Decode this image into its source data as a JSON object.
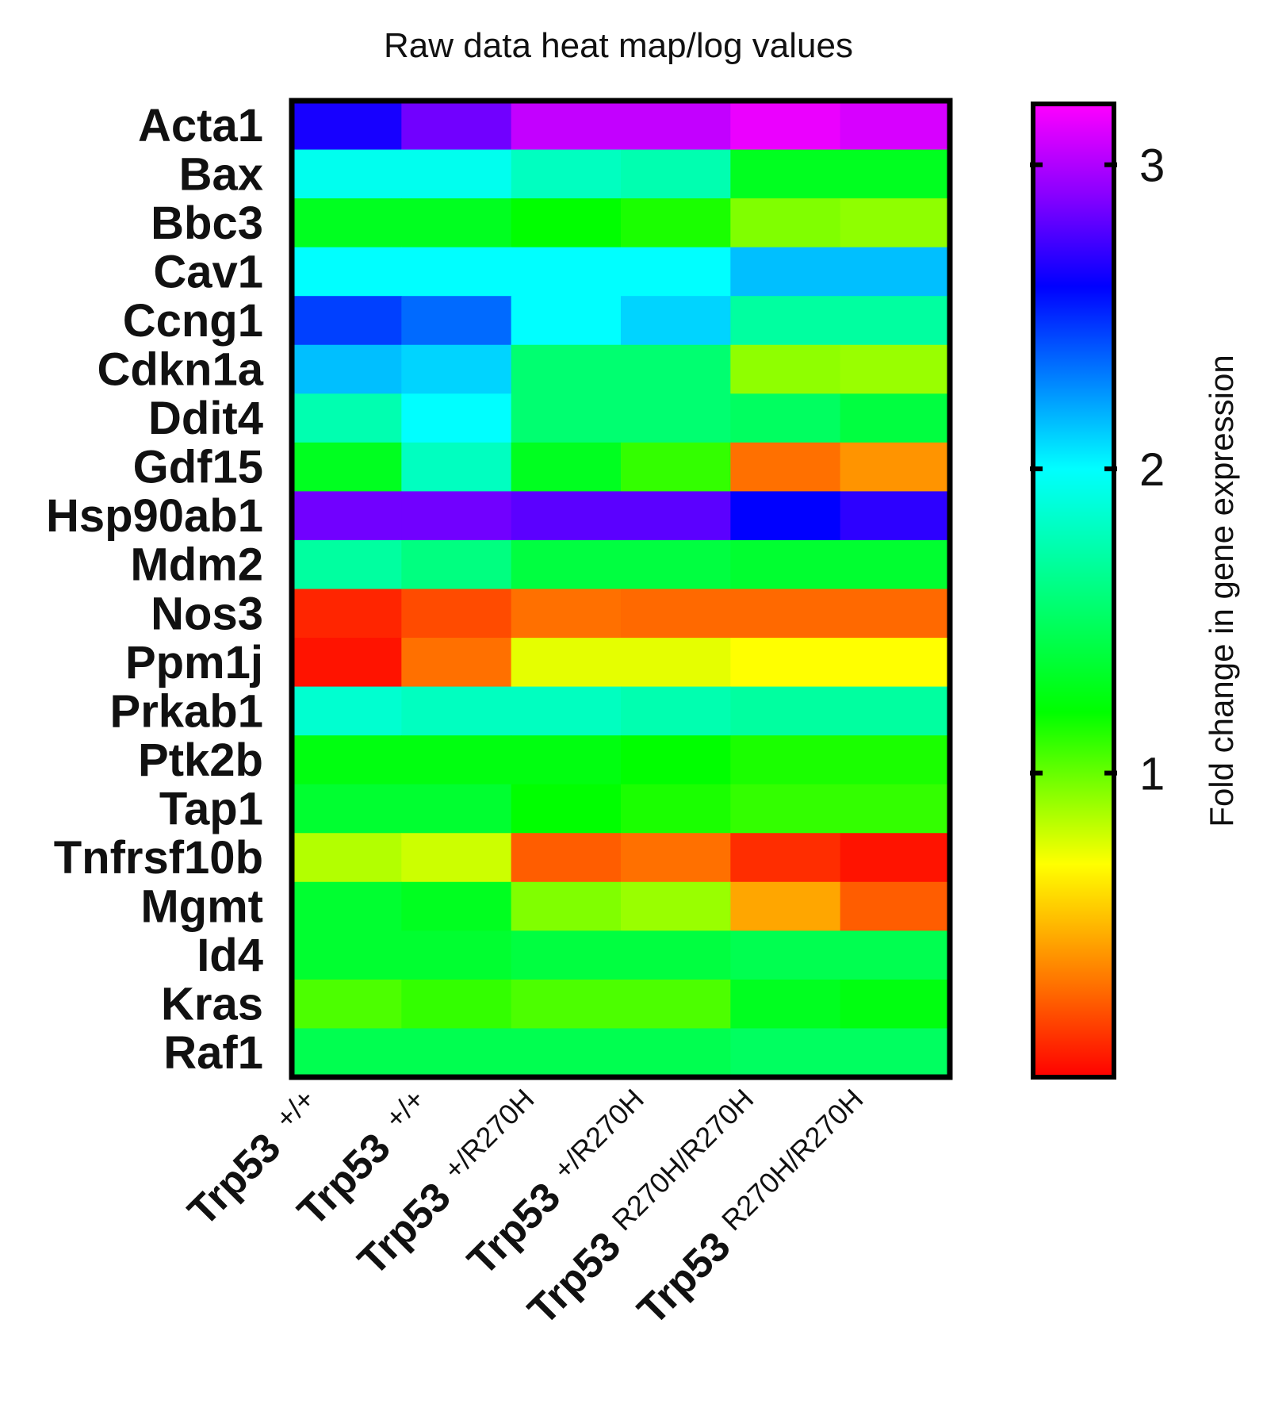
{
  "chart_data": {
    "type": "heatmap",
    "title": "Raw data heat map/log values",
    "rows": [
      "Acta1",
      "Bax",
      "Bbc3",
      "Cav1",
      "Ccng1",
      "Cdkn1a",
      "Ddit4",
      "Gdf15",
      "Hsp90ab1",
      "Mdm2",
      "Nos3",
      "Ppm1j",
      "Prkab1",
      "Ptk2b",
      "Tap1",
      "Tnfrsf10b",
      "Mgmt",
      "Id4",
      "Kras",
      "Raf1"
    ],
    "columns": [
      {
        "main": "Trp53",
        "sup": "+/+"
      },
      {
        "main": "Trp53",
        "sup": "+/+"
      },
      {
        "main": "Trp53",
        "sup": "+/R270H"
      },
      {
        "main": "Trp53",
        "sup": "+/R270H"
      },
      {
        "main": "Trp53",
        "sup": "R270H/R270H"
      },
      {
        "main": "Trp53",
        "sup": "R270H/R270H"
      }
    ],
    "values": [
      [
        2.65,
        2.85,
        3.05,
        3.05,
        3.15,
        3.1
      ],
      [
        1.95,
        1.95,
        1.8,
        1.75,
        1.3,
        1.3
      ],
      [
        1.3,
        1.3,
        1.2,
        1.15,
        0.95,
        0.92
      ],
      [
        2.0,
        2.0,
        2.0,
        2.0,
        2.15,
        2.15
      ],
      [
        2.45,
        2.35,
        2.0,
        2.1,
        1.7,
        1.7
      ],
      [
        2.15,
        2.1,
        1.55,
        1.55,
        0.92,
        0.9
      ],
      [
        1.75,
        2.0,
        1.55,
        1.55,
        1.5,
        1.4
      ],
      [
        1.3,
        1.8,
        1.3,
        1.1,
        0.3,
        0.4
      ],
      [
        2.85,
        2.85,
        2.8,
        2.8,
        2.6,
        2.7
      ],
      [
        1.7,
        1.6,
        1.4,
        1.4,
        1.35,
        1.35
      ],
      [
        0.1,
        0.2,
        0.3,
        0.28,
        0.28,
        0.28
      ],
      [
        0.05,
        0.3,
        0.75,
        0.75,
        0.7,
        0.7
      ],
      [
        1.85,
        1.8,
        1.8,
        1.75,
        1.7,
        1.7
      ],
      [
        1.25,
        1.25,
        1.25,
        1.2,
        1.15,
        1.15
      ],
      [
        1.35,
        1.35,
        1.2,
        1.15,
        1.1,
        1.1
      ],
      [
        0.85,
        0.8,
        0.25,
        0.3,
        0.12,
        0.05
      ],
      [
        1.35,
        1.3,
        0.95,
        0.9,
        0.45,
        0.25
      ],
      [
        1.35,
        1.35,
        1.4,
        1.4,
        1.45,
        1.45
      ],
      [
        1.05,
        1.1,
        1.05,
        1.05,
        1.3,
        1.25
      ],
      [
        1.45,
        1.45,
        1.45,
        1.45,
        1.5,
        1.5
      ]
    ],
    "color_scale": {
      "min": 0,
      "max": 3.2,
      "stops": [
        {
          "value": 0.0,
          "color": "#ff0000"
        },
        {
          "value": 0.3,
          "color": "#ff7000"
        },
        {
          "value": 0.7,
          "color": "#ffff00"
        },
        {
          "value": 1.2,
          "color": "#00ff00"
        },
        {
          "value": 1.7,
          "color": "#00ffa0"
        },
        {
          "value": 2.0,
          "color": "#00ffff"
        },
        {
          "value": 2.6,
          "color": "#0000ff"
        },
        {
          "value": 2.9,
          "color": "#8800ff"
        },
        {
          "value": 3.2,
          "color": "#ff00ff"
        }
      ]
    },
    "colorbar": {
      "ticks": [
        1,
        2,
        3
      ],
      "tick_labels": [
        "1",
        "2",
        "3"
      ],
      "label": "Fold change in gene expression"
    }
  }
}
